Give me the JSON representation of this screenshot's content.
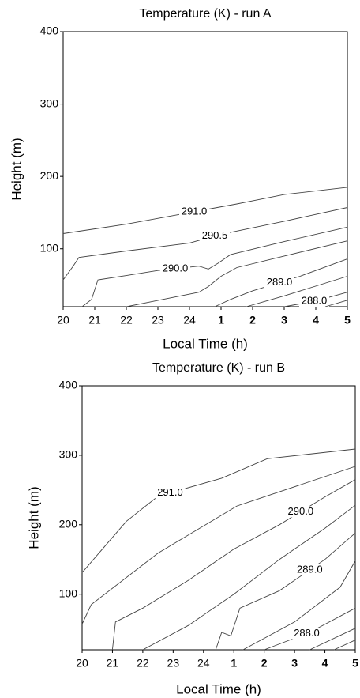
{
  "chart_data": [
    {
      "type": "contour",
      "title": "Temperature (K) - run A",
      "x_label": "Local Time (h)",
      "y_label": "Height (m)",
      "xlim": [
        20,
        29
      ],
      "ylim": [
        20,
        400
      ],
      "xticks": [
        20,
        21,
        22,
        23,
        24,
        {
          "value": 25,
          "label": "1"
        },
        {
          "value": 26,
          "label": "2"
        },
        {
          "value": 27,
          "label": "3"
        },
        {
          "value": 28,
          "label": "4"
        },
        {
          "value": 29,
          "label": "5"
        }
      ],
      "yticks": [
        100,
        200,
        300,
        400
      ],
      "color": "#444444",
      "contours": [
        {
          "level": 291,
          "label": "291.0",
          "label_x": 24.15,
          "x": [
            20,
            22,
            24,
            25.5,
            27,
            29
          ],
          "y": [
            121,
            134,
            150,
            162,
            175,
            185
          ]
        },
        {
          "level": 290.5,
          "label": "290.5",
          "label_x": 24.8,
          "x": [
            20,
            20.3,
            20.5,
            22,
            24,
            25,
            27,
            29
          ],
          "y": [
            57,
            75,
            88,
            97,
            108,
            120,
            138,
            157
          ]
        },
        {
          "level": 290,
          "label": "290.0",
          "label_x": 23.55,
          "x": [
            20.6,
            20.9,
            21.1,
            22,
            23,
            24.3,
            24.6,
            24.9,
            25.3,
            27,
            29
          ],
          "y": [
            20,
            30,
            57,
            63,
            70,
            76,
            72,
            80,
            92,
            110,
            130
          ]
        },
        {
          "level": 289.5,
          "x": [
            22,
            24.3,
            24.6,
            25,
            25.5,
            27,
            29
          ],
          "y": [
            20,
            40,
            48,
            62,
            74,
            90,
            111
          ]
        },
        {
          "level": 289,
          "label": "289.0",
          "label_x": 26.85,
          "x": [
            24.8,
            25.3,
            26,
            27.5,
            29
          ],
          "y": [
            20,
            30,
            42,
            62,
            86
          ]
        },
        {
          "level": 288.5,
          "x": [
            25.8,
            27,
            29
          ],
          "y": [
            20,
            35,
            62
          ]
        },
        {
          "level": 288,
          "label": "288.0",
          "label_x": 27.95,
          "x": [
            27,
            28,
            29
          ],
          "y": [
            20,
            28,
            40
          ]
        },
        {
          "level": 287.5,
          "x": [
            28.3,
            29
          ],
          "y": [
            20,
            29
          ]
        }
      ]
    },
    {
      "type": "contour",
      "title": "Temperature (K) - run B",
      "x_label": "Local Time (h)",
      "y_label": "Height (m)",
      "xlim": [
        20,
        29
      ],
      "ylim": [
        20,
        400
      ],
      "xticks": [
        20,
        21,
        22,
        23,
        24,
        {
          "value": 25,
          "label": "1"
        },
        {
          "value": 26,
          "label": "2"
        },
        {
          "value": 27,
          "label": "3"
        },
        {
          "value": 28,
          "label": "4"
        },
        {
          "value": 29,
          "label": "5"
        }
      ],
      "yticks": [
        100,
        200,
        300,
        400
      ],
      "color": "#444444",
      "contours": [
        {
          "level": 291,
          "label": "291.0",
          "label_x": 22.9,
          "x": [
            20,
            21.46,
            22.5,
            24.6,
            26.1,
            29
          ],
          "y": [
            131,
            205,
            241,
            267,
            295,
            309
          ]
        },
        {
          "level": 290.5,
          "x": [
            20,
            20.3,
            22.5,
            25.1,
            29
          ],
          "y": [
            57,
            85,
            159,
            227,
            284
          ]
        },
        {
          "level": 290,
          "label": "290.0",
          "label_x": 27.2,
          "x": [
            21,
            21.1,
            22,
            23.5,
            25,
            26.5,
            28,
            29
          ],
          "y": [
            20,
            60,
            80,
            120,
            165,
            200,
            240,
            265
          ]
        },
        {
          "level": 289.5,
          "x": [
            22,
            23.5,
            25,
            26.5,
            28,
            29
          ],
          "y": [
            20,
            55,
            100,
            150,
            195,
            228
          ]
        },
        {
          "level": 289,
          "label": "289.0",
          "label_x": 27.5,
          "x": [
            24.4,
            24.6,
            24.9,
            25.2,
            26.5,
            28,
            29
          ],
          "y": [
            20,
            45,
            40,
            80,
            105,
            150,
            188
          ]
        },
        {
          "level": 288.5,
          "x": [
            25.3,
            27,
            28.5,
            29
          ],
          "y": [
            20,
            60,
            110,
            148
          ]
        },
        {
          "level": 288,
          "label": "288.0",
          "label_x": 27.4,
          "x": [
            26,
            27.5,
            29
          ],
          "y": [
            20,
            45,
            80
          ]
        },
        {
          "level": 287.5,
          "x": [
            27.5,
            29
          ],
          "y": [
            20,
            51
          ]
        },
        {
          "level": 287,
          "x": [
            28.3,
            29
          ],
          "y": [
            20,
            34
          ]
        }
      ]
    }
  ]
}
